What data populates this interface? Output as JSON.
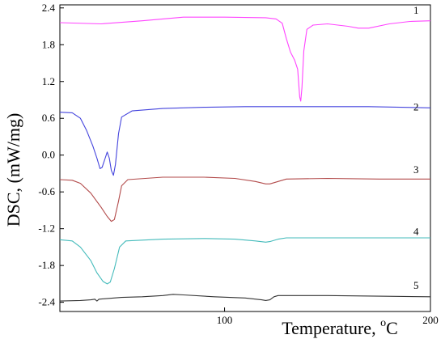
{
  "chart_data": {
    "type": "line",
    "xlabel": "Temperature, ",
    "xlabel_unit": "C",
    "xlabel_sup": "o",
    "ylabel": "DSC, (mW/mg)",
    "xlim": [
      20,
      200
    ],
    "ylim": [
      -2.55,
      2.45
    ],
    "x_ticks": [
      100,
      200
    ],
    "y_ticks": [
      2.4,
      1.8,
      1.2,
      0.6,
      0.0,
      -0.6,
      -1.2,
      -1.8,
      -2.4
    ],
    "y_tick_labels": [
      "2.4",
      "1.8",
      "1.2",
      "0.6",
      "0.0",
      "-0.6",
      "-1.2",
      "-1.8",
      "-2.4"
    ],
    "grid": false,
    "series": [
      {
        "name": "1",
        "color": "#ff44ff",
        "label_at": [
          193,
          2.36
        ],
        "points": [
          [
            20,
            2.16
          ],
          [
            40,
            2.14
          ],
          [
            60,
            2.19
          ],
          [
            80,
            2.25
          ],
          [
            100,
            2.25
          ],
          [
            120,
            2.24
          ],
          [
            125,
            2.22
          ],
          [
            128,
            2.15
          ],
          [
            130,
            1.9
          ],
          [
            132,
            1.68
          ],
          [
            134,
            1.55
          ],
          [
            135.5,
            1.4
          ],
          [
            136.5,
            0.95
          ],
          [
            137,
            0.88
          ],
          [
            137.6,
            1.1
          ],
          [
            138.5,
            1.7
          ],
          [
            140,
            2.05
          ],
          [
            143,
            2.12
          ],
          [
            150,
            2.14
          ],
          [
            160,
            2.1
          ],
          [
            165,
            2.07
          ],
          [
            170,
            2.07
          ],
          [
            180,
            2.14
          ],
          [
            190,
            2.18
          ],
          [
            200,
            2.19
          ]
        ]
      },
      {
        "name": "2",
        "color": "#4444dd",
        "label_at": [
          193,
          0.78
        ],
        "points": [
          [
            20,
            0.7
          ],
          [
            26,
            0.69
          ],
          [
            30,
            0.6
          ],
          [
            33,
            0.4
          ],
          [
            36,
            0.15
          ],
          [
            38,
            -0.05
          ],
          [
            39.5,
            -0.22
          ],
          [
            40.5,
            -0.2
          ],
          [
            42,
            -0.05
          ],
          [
            43,
            0.05
          ],
          [
            44,
            -0.05
          ],
          [
            45,
            -0.25
          ],
          [
            46,
            -0.33
          ],
          [
            47,
            -0.15
          ],
          [
            48.5,
            0.35
          ],
          [
            50,
            0.62
          ],
          [
            55,
            0.72
          ],
          [
            70,
            0.76
          ],
          [
            90,
            0.78
          ],
          [
            110,
            0.79
          ],
          [
            140,
            0.79
          ],
          [
            170,
            0.79
          ],
          [
            200,
            0.77
          ]
        ]
      },
      {
        "name": "3",
        "color": "#b24a4a",
        "label_at": [
          193,
          -0.24
        ],
        "points": [
          [
            20,
            -0.4
          ],
          [
            26,
            -0.41
          ],
          [
            30,
            -0.46
          ],
          [
            35,
            -0.62
          ],
          [
            40,
            -0.85
          ],
          [
            43,
            -1.0
          ],
          [
            45,
            -1.08
          ],
          [
            46.5,
            -1.05
          ],
          [
            48.5,
            -0.75
          ],
          [
            50,
            -0.5
          ],
          [
            53,
            -0.4
          ],
          [
            70,
            -0.36
          ],
          [
            90,
            -0.36
          ],
          [
            105,
            -0.38
          ],
          [
            115,
            -0.43
          ],
          [
            120,
            -0.47
          ],
          [
            122,
            -0.47
          ],
          [
            126,
            -0.43
          ],
          [
            130,
            -0.39
          ],
          [
            150,
            -0.38
          ],
          [
            175,
            -0.39
          ],
          [
            200,
            -0.39
          ]
        ]
      },
      {
        "name": "4",
        "color": "#44bbbb",
        "label_at": [
          193,
          -1.25
        ],
        "points": [
          [
            20,
            -1.38
          ],
          [
            26,
            -1.4
          ],
          [
            30,
            -1.5
          ],
          [
            35,
            -1.72
          ],
          [
            38,
            -1.92
          ],
          [
            41,
            -2.06
          ],
          [
            43,
            -2.1
          ],
          [
            44.5,
            -2.07
          ],
          [
            46.5,
            -1.85
          ],
          [
            49,
            -1.5
          ],
          [
            52,
            -1.4
          ],
          [
            70,
            -1.37
          ],
          [
            90,
            -1.36
          ],
          [
            105,
            -1.37
          ],
          [
            115,
            -1.4
          ],
          [
            120,
            -1.42
          ],
          [
            122,
            -1.41
          ],
          [
            126,
            -1.37
          ],
          [
            130,
            -1.35
          ],
          [
            150,
            -1.35
          ],
          [
            175,
            -1.35
          ],
          [
            200,
            -1.35
          ]
        ]
      },
      {
        "name": "5",
        "color": "#333333",
        "label_at": [
          193,
          -2.13
        ],
        "points": [
          [
            20,
            -2.38
          ],
          [
            30,
            -2.37
          ],
          [
            35,
            -2.36
          ],
          [
            37,
            -2.35
          ],
          [
            38,
            -2.38
          ],
          [
            39,
            -2.35
          ],
          [
            50,
            -2.32
          ],
          [
            60,
            -2.31
          ],
          [
            70,
            -2.29
          ],
          [
            75,
            -2.27
          ],
          [
            80,
            -2.28
          ],
          [
            95,
            -2.31
          ],
          [
            110,
            -2.33
          ],
          [
            118,
            -2.36
          ],
          [
            120,
            -2.37
          ],
          [
            122,
            -2.36
          ],
          [
            124,
            -2.31
          ],
          [
            126,
            -2.29
          ],
          [
            150,
            -2.29
          ],
          [
            175,
            -2.3
          ],
          [
            200,
            -2.31
          ]
        ]
      }
    ]
  }
}
